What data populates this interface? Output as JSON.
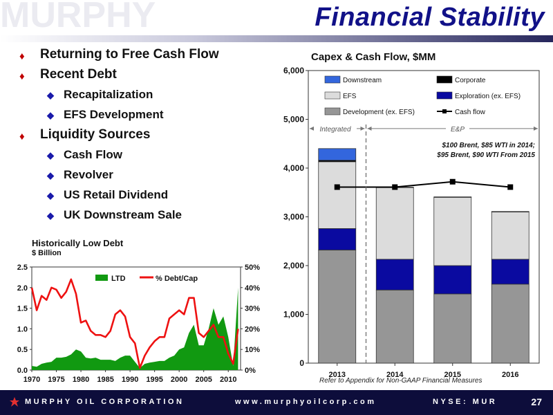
{
  "slide": {
    "title": "Financial Stability",
    "watermark": "MURPHY",
    "page_number": "27",
    "footnote": "Refer to Appendix for Non-GAAP Financial Measures"
  },
  "bullets": [
    {
      "level": 1,
      "text": "Returning to Free Cash Flow"
    },
    {
      "level": 1,
      "text": "Recent Debt"
    },
    {
      "level": 2,
      "text": "Recapitalization"
    },
    {
      "level": 2,
      "text": "EFS Development"
    },
    {
      "level": 1,
      "text": "Liquidity Sources"
    },
    {
      "level": 2,
      "text": "Cash Flow"
    },
    {
      "level": 2,
      "text": "Revolver"
    },
    {
      "level": 2,
      "text": "US Retail Dividend"
    },
    {
      "level": 2,
      "text": "UK Downstream Sale"
    }
  ],
  "footer": {
    "company": "MURPHY OIL CORPORATION",
    "website": "www.murphyoilcorp.com",
    "ticker": "NYSE: MUR"
  },
  "colors": {
    "title": "#111188",
    "footer_bg": "#0d0d3b",
    "bullet_l1": "#c00000",
    "bullet_l2": "#1a1aaa",
    "downstream": "#3366dd",
    "corporate": "#000000",
    "efs": "#dcdcdc",
    "exploration": "#0a0aa0",
    "development": "#969696",
    "ltd": "#119911",
    "debt_cap": "#ee1111"
  },
  "chart_data": [
    {
      "type": "area",
      "title": "Historically Low Debt",
      "subtitle": "$ Billion",
      "x": [
        1970,
        1971,
        1972,
        1973,
        1974,
        1975,
        1976,
        1977,
        1978,
        1979,
        1980,
        1981,
        1982,
        1983,
        1984,
        1985,
        1986,
        1987,
        1988,
        1989,
        1990,
        1991,
        1992,
        1993,
        1994,
        1995,
        1996,
        1997,
        1998,
        1999,
        2000,
        2001,
        2002,
        2003,
        2004,
        2005,
        2006,
        2007,
        2008,
        2009,
        2010,
        2011,
        2012
      ],
      "xticks": [
        "1970",
        "1975",
        "1980",
        "1985",
        "1990",
        "1995",
        "2000",
        "2005",
        "2010"
      ],
      "xlim": [
        1970,
        2012.5
      ],
      "y_left_ticks": [
        "0.0",
        "0.5",
        "1.0",
        "1.5",
        "2.0",
        "2.5"
      ],
      "ylim_left": [
        0,
        2.5
      ],
      "y_right_ticks": [
        "0%",
        "10%",
        "20%",
        "30%",
        "40%",
        "50%"
      ],
      "ylim_right": [
        0,
        50
      ],
      "legend_position": "top",
      "series": [
        {
          "name": "LTD",
          "axis": "left",
          "kind": "area",
          "values": [
            0.1,
            0.08,
            0.15,
            0.18,
            0.2,
            0.3,
            0.3,
            0.32,
            0.38,
            0.5,
            0.45,
            0.3,
            0.28,
            0.3,
            0.25,
            0.25,
            0.25,
            0.22,
            0.3,
            0.35,
            0.35,
            0.2,
            0.05,
            0.15,
            0.18,
            0.2,
            0.22,
            0.22,
            0.3,
            0.35,
            0.5,
            0.55,
            0.9,
            1.1,
            0.6,
            0.6,
            1.0,
            1.5,
            1.1,
            1.3,
            0.8,
            0.1,
            2.0
          ]
        },
        {
          "name": "% Debt/Cap",
          "axis": "right",
          "kind": "line",
          "values": [
            40,
            29,
            36,
            34,
            40,
            39,
            35,
            38,
            44,
            37,
            23,
            24,
            19,
            17,
            17,
            16,
            19,
            27,
            29,
            26,
            16,
            13,
            1,
            7,
            11,
            14,
            16,
            16,
            25,
            27,
            29,
            27,
            35,
            35,
            18,
            16,
            19,
            22,
            16,
            16,
            8,
            3,
            20
          ]
        }
      ]
    },
    {
      "type": "bar",
      "title": "Capex & Cash Flow, $MM",
      "categories": [
        "2013",
        "2014",
        "2015",
        "2016"
      ],
      "ylim": [
        0,
        6000
      ],
      "yticks": [
        "0",
        "1,000",
        "2,000",
        "3,000",
        "4,000",
        "5,000",
        "6,000"
      ],
      "legend_position": "top",
      "series": [
        {
          "name": "Development (ex. EFS)",
          "kind": "stacked-bar",
          "values": [
            2320,
            1500,
            1420,
            1620
          ]
        },
        {
          "name": "Exploration (ex. EFS)",
          "kind": "stacked-bar",
          "values": [
            440,
            630,
            580,
            510
          ]
        },
        {
          "name": "EFS",
          "kind": "stacked-bar",
          "values": [
            1370,
            1470,
            1400,
            970
          ]
        },
        {
          "name": "Corporate",
          "kind": "stacked-bar",
          "values": [
            30,
            10,
            10,
            10
          ]
        },
        {
          "name": "Downstream",
          "kind": "stacked-bar",
          "values": [
            240,
            0,
            0,
            0
          ]
        },
        {
          "name": "Cash flow",
          "kind": "line",
          "values": [
            3610,
            3610,
            3720,
            3610
          ]
        }
      ],
      "annotations": {
        "integrated": "Integrated",
        "ep": "E&P",
        "price_line1": "$100 Brent, $85 WTI in 2014;",
        "price_line2": "$95 Brent, $90 WTI From 2015"
      }
    }
  ]
}
